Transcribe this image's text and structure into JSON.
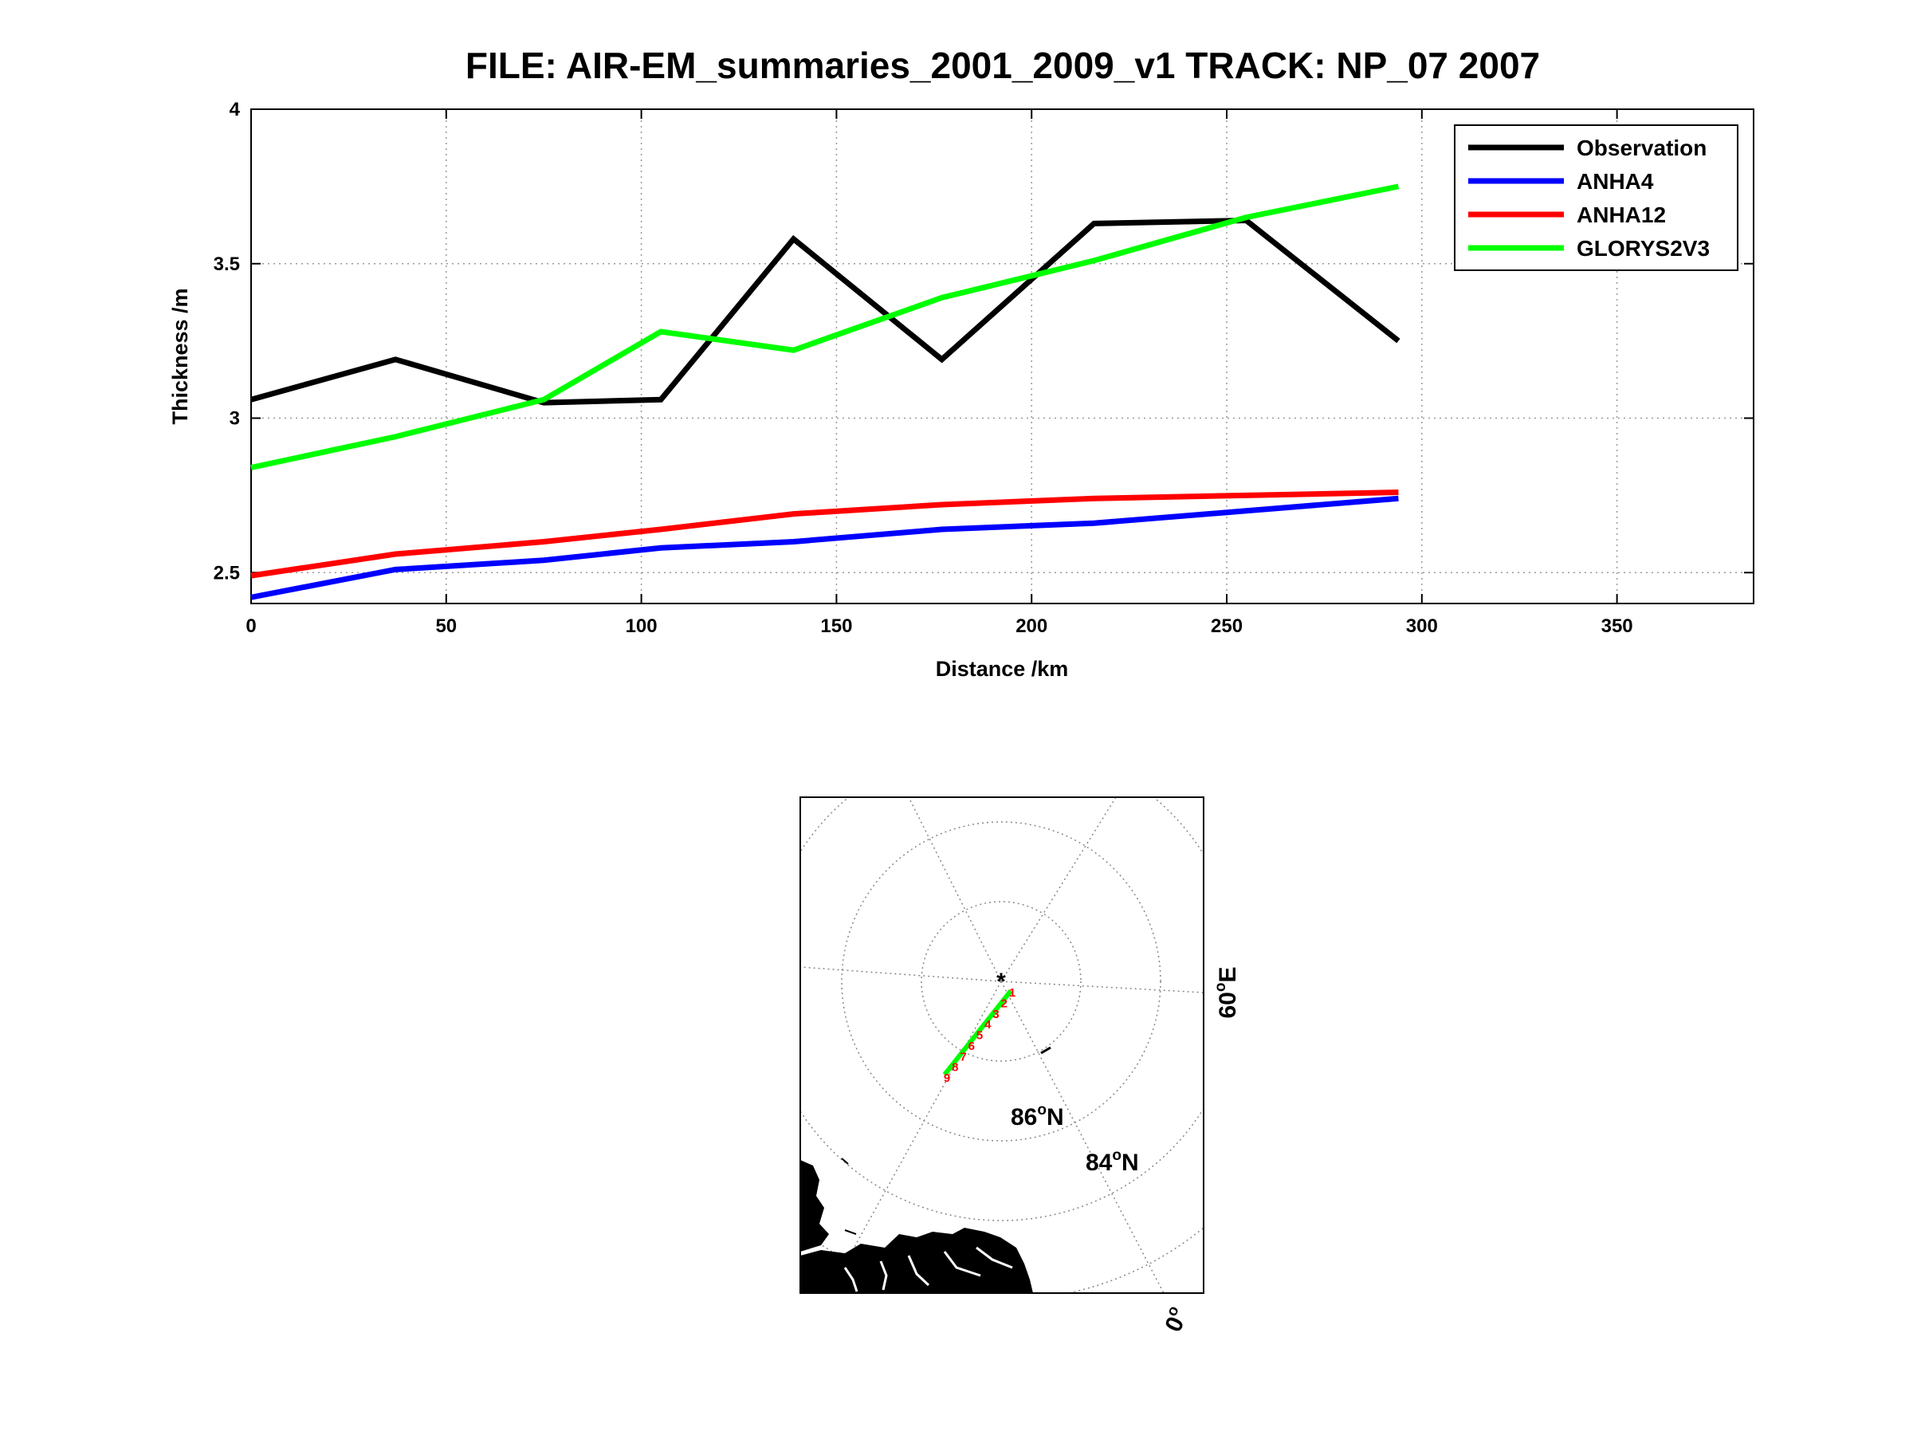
{
  "chart_data": [
    {
      "type": "line",
      "title": "FILE: AIR-EM_summaries_2001_2009_v1 TRACK: NP_07 2007",
      "xlabel": "Distance /km",
      "ylabel": "Thickness /m",
      "xlim": [
        0,
        385
      ],
      "ylim": [
        2.4,
        4
      ],
      "xticks": [
        "0",
        "50",
        "100",
        "150",
        "200",
        "250",
        "300",
        "350"
      ],
      "yticks": [
        "2.5",
        "3",
        "3.5",
        "4"
      ],
      "grid": true,
      "legend_position": "top-right",
      "x": [
        0,
        37,
        75,
        105,
        139,
        177,
        216,
        255,
        294
      ],
      "series": [
        {
          "name": "Observation",
          "color": "#000000",
          "values": [
            3.06,
            3.19,
            3.05,
            3.06,
            3.58,
            3.19,
            3.63,
            3.64,
            3.25
          ]
        },
        {
          "name": "ANHA4",
          "color": "#0000ff",
          "values": [
            2.42,
            2.51,
            2.54,
            2.58,
            2.6,
            2.64,
            2.66,
            2.7,
            2.74
          ]
        },
        {
          "name": "ANHA12",
          "color": "#ff0000",
          "values": [
            2.49,
            2.56,
            2.6,
            2.64,
            2.69,
            2.72,
            2.74,
            2.75,
            2.76
          ]
        },
        {
          "name": "GLORYS2V3",
          "color": "#00ff00",
          "values": [
            2.84,
            2.94,
            3.06,
            3.28,
            3.22,
            3.39,
            3.51,
            3.65,
            3.75
          ]
        }
      ]
    },
    {
      "type": "map",
      "labels": {
        "lat86": "86",
        "lat84": "84",
        "lat_unit": "N",
        "lon60": "60",
        "lon60_unit": "E",
        "lon0": "0",
        "degree_mark": "o"
      },
      "track_point_labels": [
        "1",
        "2",
        "3",
        "4",
        "5",
        "6",
        "7",
        "8",
        "9"
      ],
      "pole_marker": "*",
      "track_color": "#00ff00",
      "track_label_color": "#ff0000",
      "land_color": "#000000"
    }
  ]
}
